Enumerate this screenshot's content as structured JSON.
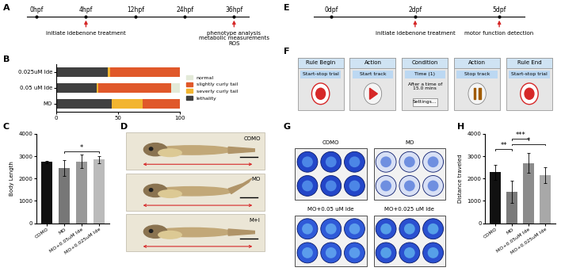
{
  "timelines": [
    {
      "title": "A",
      "ticks": [
        "0hpf",
        "4hpf",
        "12hpf",
        "24hpf",
        "36hpf"
      ],
      "events": [
        {
          "at": "4hpf",
          "lines": [
            "initiate idebenone treatment"
          ]
        },
        {
          "at": "36hpf",
          "lines": [
            "phenotype analysis",
            "metabolic measurements",
            "ROS"
          ]
        }
      ]
    },
    {
      "title": "E",
      "ticks": [
        "0dpf",
        "2dpf",
        "5dpf"
      ],
      "events": [
        {
          "at": "2dpf",
          "lines": [
            "initiate idebenone treatment"
          ]
        },
        {
          "at": "5dpf",
          "lines": [
            "motor function detection"
          ]
        }
      ]
    }
  ],
  "chart_data": [
    {
      "title": "B",
      "type": "bar",
      "orientation": "horizontal",
      "stacked": true,
      "categories": [
        "0.025uM Ide",
        "0.05 uM Ide",
        "MO"
      ],
      "series": [
        {
          "name": "lethality",
          "color": "#404040",
          "values": [
            42,
            33,
            45
          ]
        },
        {
          "name": "severly curly tail",
          "color": "#f2b530",
          "values": [
            2,
            1,
            25
          ]
        },
        {
          "name": "slightly curly tail",
          "color": "#e0582a",
          "values": [
            56,
            59,
            30
          ]
        },
        {
          "name": "normal",
          "color": "#e3ead8",
          "values": [
            0,
            7,
            0
          ]
        }
      ],
      "xlim": [
        0,
        100
      ],
      "xticks": [
        0,
        50,
        100
      ],
      "legend": "right"
    },
    {
      "title": "C",
      "type": "bar",
      "ylabel": "Body Length",
      "categories": [
        "COMO",
        "MO",
        "MO+0.05uM Ide",
        "MO+0.025uM Ide"
      ],
      "values": [
        2750,
        2480,
        2760,
        2850
      ],
      "errors": [
        50,
        350,
        300,
        150
      ],
      "colors": [
        "#111111",
        "#777777",
        "#999999",
        "#bbbbbb"
      ],
      "ylim": [
        0,
        4000
      ],
      "yticks": [
        0,
        1000,
        2000,
        3000,
        4000
      ],
      "significance": [
        {
          "from": "MO",
          "to": "MO+0.025uM Ide",
          "label": "*"
        }
      ]
    },
    {
      "title": "H",
      "type": "bar",
      "ylabel": "Distance traveled",
      "categories": [
        "COMO",
        "MO",
        "MO+0.05uM Ide",
        "MO+0.025uM Ide"
      ],
      "values": [
        2280,
        1400,
        2700,
        2150
      ],
      "errors": [
        350,
        500,
        450,
        350
      ],
      "colors": [
        "#111111",
        "#7a7a7a",
        "#8c8c8c",
        "#a8a8a8"
      ],
      "ylim": [
        0,
        4000
      ],
      "yticks": [
        0,
        1000,
        2000,
        3000,
        4000
      ],
      "significance": [
        {
          "from": "COMO",
          "to": "MO",
          "label": "**"
        },
        {
          "from": "MO",
          "to": "MO+0.025uM Ide",
          "label": "*"
        },
        {
          "from": "MO",
          "to": "MO+0.05uM Ide",
          "label": "***"
        }
      ]
    }
  ],
  "images": [
    {
      "title": "D",
      "labels": [
        "COMO",
        "MO",
        "M+I"
      ]
    },
    {
      "title": "G",
      "labels": [
        "COMO",
        "MO",
        "MO+0.05 uM Ide",
        "MO+0.025 uM Ide"
      ]
    }
  ],
  "flowchart": {
    "title": "F",
    "steps": [
      {
        "title": "Rule Begin",
        "action": "Start-stop trial"
      },
      {
        "title": "Action",
        "action": "Start track"
      },
      {
        "title": "Condition",
        "action": "Time (1)",
        "detail": [
          "After a time of",
          "15.0 mins"
        ],
        "button": "Settings..."
      },
      {
        "title": "Action",
        "action": "Stop track"
      },
      {
        "title": "Rule End",
        "action": "Start-stop trial"
      }
    ]
  }
}
